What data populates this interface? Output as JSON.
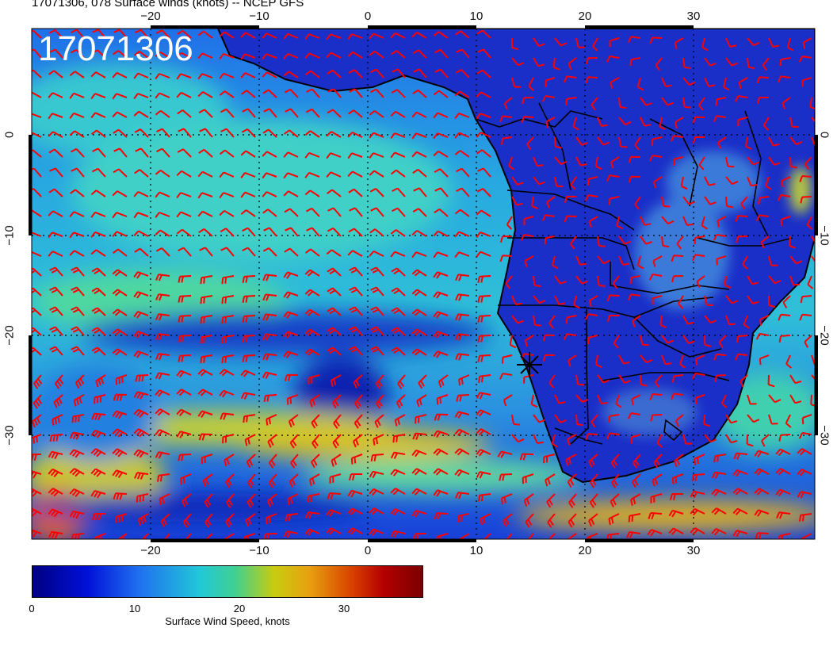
{
  "title": "17071306, 078 Surface winds (knots) -- NCEP GFS",
  "stamp": "17071306",
  "map": {
    "lon_range": [
      -31,
      41
    ],
    "lat_range": [
      -41,
      10
    ],
    "top_ticks": [
      "−20",
      "−10",
      "0",
      "10",
      "20",
      "30"
    ],
    "bottom_ticks": [
      "−20",
      "−10",
      "0",
      "10",
      "20",
      "30"
    ],
    "left_ticks": [
      "0",
      "−10",
      "−20",
      "−30"
    ],
    "right_ticks": [
      "0",
      "−10",
      "−20",
      "−30"
    ],
    "barb_color": "#ff0000",
    "marker": "star-marker"
  },
  "colorbar": {
    "ticks": [
      "0",
      "10",
      "20",
      "30"
    ],
    "label": "Surface Wind Speed, knots",
    "range_knots": [
      0,
      38
    ]
  }
}
